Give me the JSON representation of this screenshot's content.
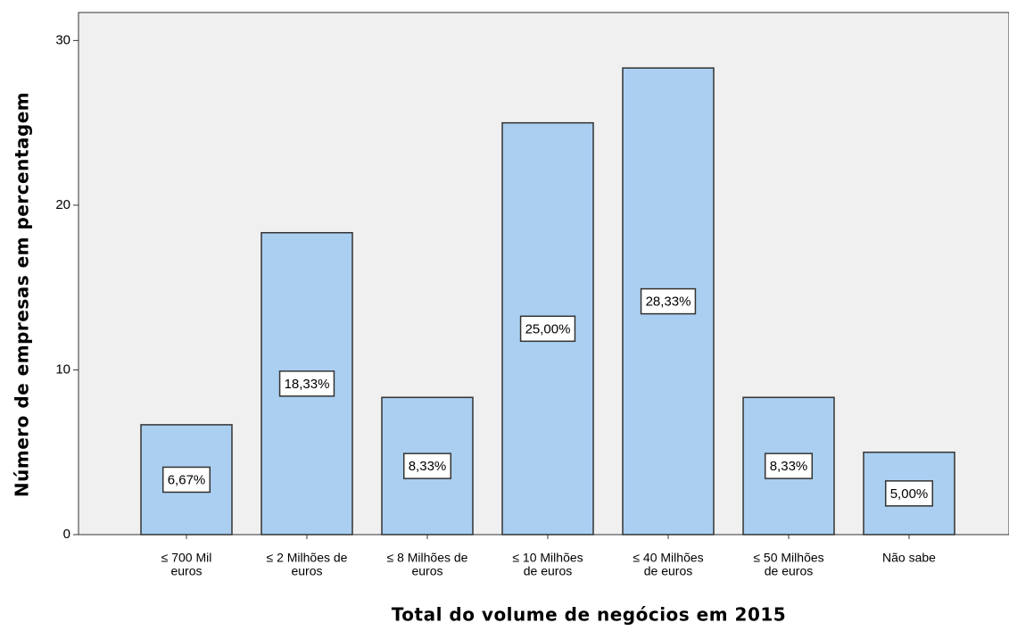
{
  "chart_data": {
    "type": "bar",
    "x_label": "Total do volume de negócios em 2015",
    "y_label": "Número de empresas em percentagem",
    "categories": [
      [
        "≤ 700 Mil",
        "euros"
      ],
      [
        "≤ 2 Milhões de",
        "euros"
      ],
      [
        "≤ 8 Milhões de",
        "euros"
      ],
      [
        "≤ 10 Milhões",
        "de euros"
      ],
      [
        "≤ 40 Milhões",
        "de euros"
      ],
      [
        "≤ 50 Milhões",
        "de euros"
      ],
      [
        "Não sabe"
      ]
    ],
    "values": [
      6.67,
      18.33,
      8.33,
      25.0,
      28.33,
      8.33,
      5.0
    ],
    "value_labels": [
      "6,67%",
      "18,33%",
      "8,33%",
      "25,00%",
      "28,33%",
      "8,33%",
      "5,00%"
    ],
    "color": "#aacff0",
    "ylim": [
      0,
      31.7
    ],
    "yticks": [
      0,
      10,
      20,
      30
    ],
    "grid": false
  }
}
